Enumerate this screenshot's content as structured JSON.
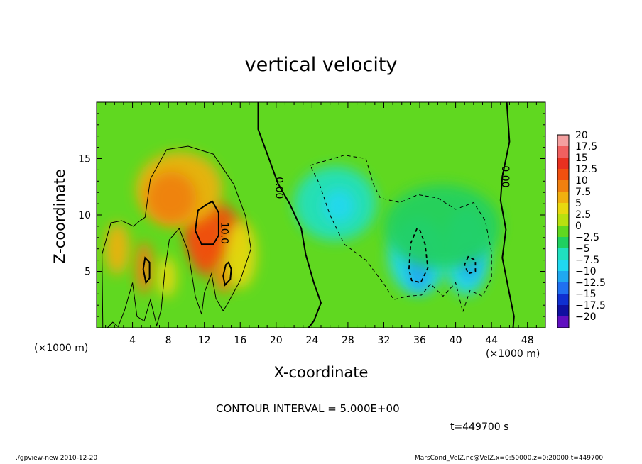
{
  "chart_data": {
    "type": "heatmap",
    "title": "vertical velocity",
    "xlabel": "X-coordinate",
    "ylabel": "Z-coordinate",
    "x_unit_left": "(×1000 m)",
    "x_unit_right": "(×1000 m)",
    "xlim": [
      0,
      50
    ],
    "ylim": [
      0,
      20
    ],
    "xticks": [
      4,
      8,
      12,
      16,
      20,
      24,
      28,
      32,
      36,
      40,
      44,
      48
    ],
    "yticks": [
      5,
      10,
      15
    ],
    "colorbar": {
      "levels": [
        20,
        17.5,
        15,
        12.5,
        10,
        7.5,
        5,
        2.5,
        0,
        -2.5,
        -5,
        -7.5,
        -10,
        -12.5,
        -15,
        -17.5,
        -20
      ],
      "labels": [
        "20",
        "17.5",
        "15",
        "12.5",
        "10",
        "7.5",
        "5",
        "2.5",
        "0",
        "−2.5",
        "−5",
        "−7.5",
        "−10",
        "−12.5",
        "−15",
        "−17.5",
        "−20"
      ],
      "colors": [
        "#f4a0a0",
        "#f06060",
        "#e83020",
        "#f05010",
        "#f08010",
        "#f0b010",
        "#e8d810",
        "#b8e010",
        "#60d820",
        "#20d060",
        "#20e0c0",
        "#20d8f0",
        "#20a8f0",
        "#2070f0",
        "#1030d0",
        "#1010a0",
        "#6010c0"
      ]
    },
    "contour_labels": [
      {
        "text": "0.00",
        "x": 20.3,
        "y": 12.4,
        "rotation": 90
      },
      {
        "text": "10.0",
        "x": 14.2,
        "y": 8.4,
        "rotation": 90
      },
      {
        "text": "0.00",
        "x": 45.5,
        "y": 13.4,
        "rotation": 90
      }
    ],
    "blobs": [
      {
        "x": 13.0,
        "y": 8.4,
        "rx": 3.2,
        "ry": 2.7,
        "v": 12.5
      },
      {
        "x": 12.2,
        "y": 7.2,
        "rx": 1.8,
        "ry": 2.6,
        "v": 11
      },
      {
        "x": 14.2,
        "y": 4.7,
        "rx": 1.2,
        "ry": 1.6,
        "v": 9
      },
      {
        "x": 9.2,
        "y": 12.3,
        "rx": 4.8,
        "ry": 3.3,
        "v": 6
      },
      {
        "x": 8.3,
        "y": 11.5,
        "rx": 2.8,
        "ry": 2.3,
        "v": 8.5
      },
      {
        "x": 5.3,
        "y": 5.3,
        "rx": 1.0,
        "ry": 2.3,
        "v": 9
      },
      {
        "x": 2.3,
        "y": 7.0,
        "rx": 1.4,
        "ry": 2.3,
        "v": 6
      },
      {
        "x": 7.8,
        "y": 4.5,
        "rx": 1.1,
        "ry": 1.8,
        "v": 5
      },
      {
        "x": 16.0,
        "y": 6.5,
        "rx": 1.8,
        "ry": 3.0,
        "v": 4
      },
      {
        "x": 26.6,
        "y": 11.0,
        "rx": 4.6,
        "ry": 3.3,
        "v": -5.5
      },
      {
        "x": 27.0,
        "y": 10.8,
        "rx": 1.8,
        "ry": 1.5,
        "v": -7.5
      },
      {
        "x": 35.8,
        "y": 6.4,
        "rx": 3.3,
        "ry": 3.4,
        "v": -8
      },
      {
        "x": 35.9,
        "y": 5.6,
        "rx": 1.3,
        "ry": 2.4,
        "v": -11.5
      },
      {
        "x": 41.2,
        "y": 6.8,
        "rx": 2.6,
        "ry": 3.9,
        "v": -7.5
      },
      {
        "x": 41.6,
        "y": 5.8,
        "rx": 1.1,
        "ry": 1.6,
        "v": -10
      },
      {
        "x": 38.5,
        "y": 9.0,
        "rx": 6.5,
        "ry": 3.7,
        "v": -3
      }
    ],
    "zero_contours": [
      [
        [
          18.0,
          20
        ],
        [
          18.0,
          17.6
        ],
        [
          19.2,
          15.0
        ],
        [
          20.2,
          12.8
        ],
        [
          21.5,
          11.0
        ],
        [
          22.8,
          8.8
        ],
        [
          23.3,
          6.5
        ],
        [
          24.2,
          4.0
        ],
        [
          25.0,
          2.2
        ],
        [
          24.2,
          0.6
        ],
        [
          23.6,
          0
        ]
      ],
      [
        [
          45.7,
          20
        ],
        [
          46.0,
          16.5
        ],
        [
          45.2,
          13.4
        ],
        [
          45.0,
          11.3
        ],
        [
          45.6,
          8.7
        ],
        [
          45.2,
          6.2
        ],
        [
          46.0,
          3.0
        ],
        [
          46.5,
          1.0
        ],
        [
          46.4,
          0
        ]
      ]
    ],
    "positive_contours": [
      [
        [
          0.7,
          0
        ],
        [
          0.6,
          6.5
        ],
        [
          1.6,
          9.3
        ],
        [
          2.8,
          9.5
        ],
        [
          4.1,
          9.0
        ],
        [
          4.7,
          9.4
        ],
        [
          5.4,
          9.8
        ],
        [
          6.0,
          13.2
        ],
        [
          7.8,
          15.8
        ],
        [
          10.2,
          16.1
        ],
        [
          13.0,
          15.4
        ],
        [
          15.3,
          12.7
        ],
        [
          16.6,
          9.9
        ],
        [
          17.2,
          7.0
        ],
        [
          16.0,
          4.2
        ],
        [
          14.5,
          2.0
        ],
        [
          14.1,
          1.5
        ],
        [
          13.3,
          2.6
        ],
        [
          12.8,
          4.8
        ],
        [
          12.0,
          3.1
        ],
        [
          11.7,
          1.2
        ],
        [
          11.0,
          2.8
        ],
        [
          10.2,
          6.8
        ],
        [
          9.2,
          8.8
        ],
        [
          8.1,
          7.8
        ],
        [
          7.6,
          5.1
        ],
        [
          7.2,
          1.6
        ],
        [
          6.7,
          0.2
        ],
        [
          6.0,
          2.5
        ],
        [
          5.3,
          0.6
        ],
        [
          4.5,
          1.0
        ],
        [
          4.0,
          4.0
        ],
        [
          3.1,
          1.5
        ],
        [
          2.4,
          0.1
        ],
        [
          1.8,
          0.5
        ],
        [
          1.2,
          0
        ]
      ],
      [
        [
          12.4,
          11.0
        ],
        [
          11.3,
          10.4
        ],
        [
          11.0,
          8.6
        ],
        [
          11.7,
          7.4
        ],
        [
          13.0,
          7.4
        ],
        [
          13.6,
          8.2
        ],
        [
          13.6,
          10.2
        ],
        [
          12.9,
          11.2
        ]
      ],
      [
        [
          14.4,
          5.6
        ],
        [
          14.1,
          4.6
        ],
        [
          14.3,
          3.8
        ],
        [
          14.9,
          4.3
        ],
        [
          15.0,
          5.2
        ],
        [
          14.7,
          5.8
        ]
      ],
      [
        [
          5.4,
          6.2
        ],
        [
          5.2,
          5.2
        ],
        [
          5.5,
          4.0
        ],
        [
          5.9,
          4.4
        ],
        [
          5.9,
          5.8
        ]
      ]
    ],
    "negative_contours": [
      [
        [
          23.8,
          14.4
        ],
        [
          27.6,
          15.3
        ],
        [
          30.0,
          15.0
        ],
        [
          30.8,
          12.8
        ],
        [
          31.6,
          11.5
        ],
        [
          33.8,
          11.1
        ],
        [
          35.8,
          11.8
        ],
        [
          38.0,
          11.5
        ],
        [
          40.0,
          10.5
        ],
        [
          42.0,
          11.1
        ],
        [
          43.3,
          9.5
        ],
        [
          44.0,
          6.7
        ],
        [
          44.0,
          4.4
        ],
        [
          43.0,
          2.8
        ],
        [
          41.6,
          3.3
        ],
        [
          40.8,
          1.4
        ],
        [
          40.0,
          4.0
        ],
        [
          38.6,
          2.8
        ],
        [
          37.2,
          3.9
        ],
        [
          36.2,
          2.9
        ],
        [
          34.6,
          2.8
        ],
        [
          33.1,
          2.5
        ],
        [
          32.0,
          3.9
        ],
        [
          30.0,
          6.0
        ],
        [
          27.6,
          7.4
        ],
        [
          26.0,
          10.0
        ],
        [
          24.8,
          12.8
        ]
      ],
      [
        [
          35.7,
          8.8
        ],
        [
          35.0,
          7.5
        ],
        [
          34.8,
          5.2
        ],
        [
          35.1,
          4.2
        ],
        [
          36.1,
          4.0
        ],
        [
          36.9,
          5.3
        ],
        [
          36.6,
          7.4
        ],
        [
          36.0,
          8.7
        ]
      ],
      [
        [
          41.4,
          6.3
        ],
        [
          41.0,
          5.6
        ],
        [
          41.4,
          4.8
        ],
        [
          42.2,
          5.0
        ],
        [
          42.2,
          6.0
        ]
      ]
    ]
  },
  "labels": {
    "contour_interval": "CONTOUR INTERVAL = 5.000E+00",
    "time": "t=449700 s",
    "footer_left": "./gpview-new  2010-12-20",
    "footer_right": "MarsCond_VelZ.nc@VelZ,x=0:50000,z=0:20000,t=449700"
  }
}
